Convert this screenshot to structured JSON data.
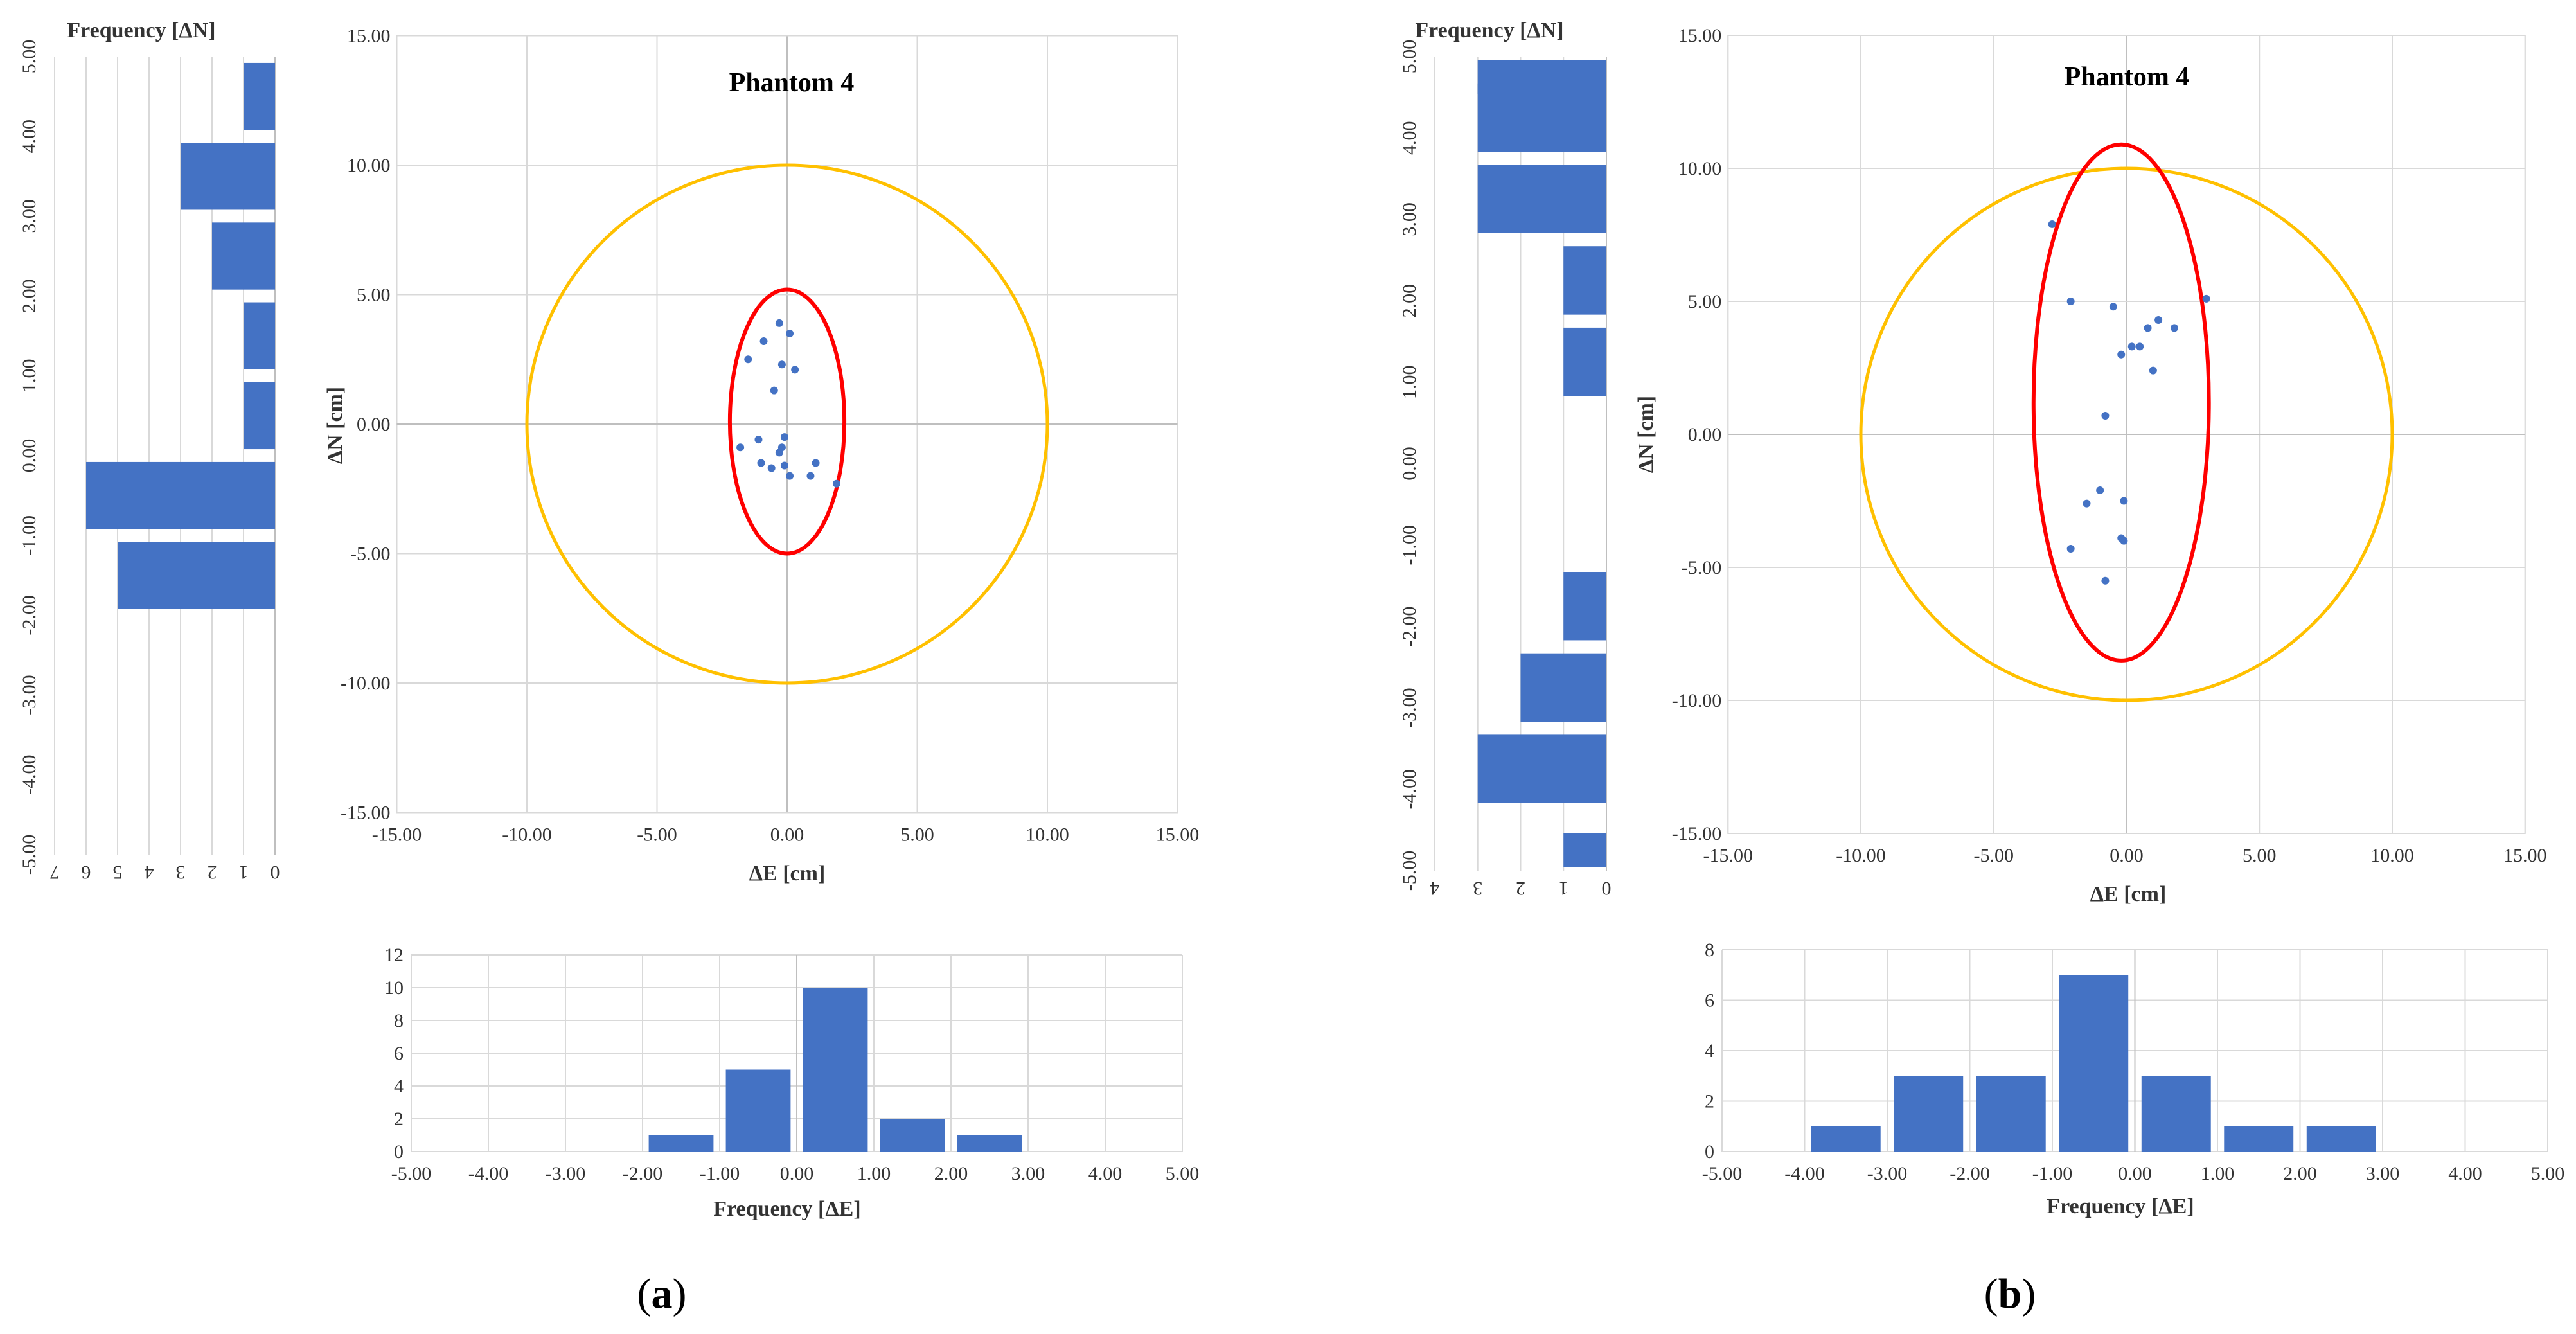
{
  "colors": {
    "bar": "#4472c4",
    "point": "#4472c4",
    "tolerance_circle": "#ffc000",
    "error_ellipse": "#ff0000",
    "grid": "#d9d9d9",
    "text": "#333333"
  },
  "panels": [
    {
      "label_open": "(",
      "label_letter": "a",
      "label_close": ")",
      "chart_data": [
        {
          "type": "scatter",
          "title": "Phantom 4",
          "xlabel": "ΔE [cm]",
          "ylabel": "ΔN [cm]",
          "xlim": [
            -15,
            15
          ],
          "ylim": [
            -15,
            15
          ],
          "xticks": [
            "-15.00",
            "-10.00",
            "-5.00",
            "0.00",
            "5.00",
            "10.00",
            "15.00"
          ],
          "yticks": [
            "-15.00",
            "-10.00",
            "-5.00",
            "0.00",
            "5.00",
            "10.00",
            "15.00"
          ],
          "grid": true,
          "points": [
            [
              -0.3,
              3.9
            ],
            [
              0.1,
              3.5
            ],
            [
              -0.9,
              3.2
            ],
            [
              -1.5,
              2.5
            ],
            [
              -0.2,
              2.3
            ],
            [
              0.3,
              2.1
            ],
            [
              -0.5,
              1.3
            ],
            [
              -1.1,
              -0.6
            ],
            [
              -0.1,
              -0.5
            ],
            [
              -1.8,
              -0.9
            ],
            [
              -0.2,
              -0.9
            ],
            [
              -0.3,
              -1.1
            ],
            [
              -1.0,
              -1.5
            ],
            [
              -0.1,
              -1.6
            ],
            [
              1.1,
              -1.5
            ],
            [
              -0.6,
              -1.7
            ],
            [
              0.1,
              -2.0
            ],
            [
              0.9,
              -2.0
            ],
            [
              1.9,
              -2.3
            ]
          ],
          "tolerance_circle": {
            "center": [
              0,
              0
            ],
            "radius": 10
          },
          "error_ellipse": {
            "center": [
              0,
              0.1
            ],
            "semi_axis_e": 2.2,
            "semi_axis_n": 5.1
          }
        },
        {
          "type": "bar",
          "orientation": "vertical",
          "xlabel": "Frequency [ΔE]",
          "xlim": [
            -5,
            5
          ],
          "ylim": [
            0,
            12
          ],
          "xticks": [
            "-5.00",
            "-4.00",
            "-3.00",
            "-2.00",
            "-1.00",
            "0.00",
            "1.00",
            "2.00",
            "3.00",
            "4.00",
            "5.00"
          ],
          "yticks": [
            "0",
            "2",
            "4",
            "6",
            "8",
            "10",
            "12"
          ],
          "bin_centers": [
            -4.5,
            -3.5,
            -2.5,
            -1.5,
            -0.5,
            0.5,
            1.5,
            2.5,
            3.5,
            4.5
          ],
          "values": [
            0,
            0,
            0,
            1,
            5,
            10,
            2,
            1,
            0,
            0
          ]
        },
        {
          "type": "bar",
          "orientation": "horizontal",
          "title": "Frequency [ΔN]",
          "ylim": [
            -5,
            5
          ],
          "xlim": [
            0,
            7
          ],
          "yticks": [
            "-5.00",
            "-4.00",
            "-3.00",
            "-2.00",
            "-1.00",
            "0.00",
            "1.00",
            "2.00",
            "3.00",
            "4.00",
            "5.00"
          ],
          "xticks": [
            "0",
            "1",
            "2",
            "3",
            "4",
            "5",
            "6",
            "7"
          ],
          "bin_centers": [
            -4.5,
            -3.5,
            -2.5,
            -1.5,
            -0.5,
            0.5,
            1.5,
            2.5,
            3.5,
            4.5
          ],
          "values": [
            0,
            0,
            0,
            5,
            6,
            1,
            1,
            2,
            3,
            1
          ]
        }
      ]
    },
    {
      "label_open": "(",
      "label_letter": "b",
      "label_close": ")",
      "chart_data": [
        {
          "type": "scatter",
          "title": "Phantom 4",
          "xlabel": "ΔE [cm]",
          "ylabel": "ΔN [cm]",
          "xlim": [
            -15,
            15
          ],
          "ylim": [
            -15,
            15
          ],
          "xticks": [
            "-15.00",
            "-10.00",
            "-5.00",
            "0.00",
            "5.00",
            "10.00",
            "15.00"
          ],
          "yticks": [
            "-15.00",
            "-10.00",
            "-5.00",
            "0.00",
            "5.00",
            "10.00",
            "15.00"
          ],
          "grid": true,
          "points": [
            [
              -2.8,
              7.9
            ],
            [
              -2.1,
              5.0
            ],
            [
              -0.5,
              4.8
            ],
            [
              3.0,
              5.1
            ],
            [
              1.2,
              4.3
            ],
            [
              1.8,
              4.0
            ],
            [
              0.8,
              4.0
            ],
            [
              0.2,
              3.3
            ],
            [
              0.5,
              3.3
            ],
            [
              -0.2,
              3.0
            ],
            [
              1.0,
              2.4
            ],
            [
              -0.8,
              0.7
            ],
            [
              -1.0,
              -2.1
            ],
            [
              -1.5,
              -2.6
            ],
            [
              -0.1,
              -2.5
            ],
            [
              -0.2,
              -3.9
            ],
            [
              -0.1,
              -4.0
            ],
            [
              -2.1,
              -4.3
            ],
            [
              -0.8,
              -5.5
            ]
          ],
          "tolerance_circle": {
            "center": [
              0,
              0
            ],
            "radius": 10
          },
          "error_ellipse": {
            "center": [
              -0.2,
              1.2
            ],
            "semi_axis_e": 3.3,
            "semi_axis_n": 9.7
          }
        },
        {
          "type": "bar",
          "orientation": "vertical",
          "xlabel": "Frequency [ΔE]",
          "xlim": [
            -5,
            5
          ],
          "ylim": [
            0,
            8
          ],
          "xticks": [
            "-5.00",
            "-4.00",
            "-3.00",
            "-2.00",
            "-1.00",
            "0.00",
            "1.00",
            "2.00",
            "3.00",
            "4.00",
            "5.00"
          ],
          "yticks": [
            "0",
            "2",
            "4",
            "6",
            "8"
          ],
          "bin_centers": [
            -4.5,
            -3.5,
            -2.5,
            -1.5,
            -0.5,
            0.5,
            1.5,
            2.5,
            3.5,
            4.5
          ],
          "values": [
            0,
            1,
            3,
            3,
            7,
            3,
            1,
            1,
            0,
            0
          ]
        },
        {
          "type": "bar",
          "orientation": "horizontal",
          "title": "Frequency [ΔN]",
          "ylim": [
            -5,
            5
          ],
          "xlim": [
            0,
            4
          ],
          "yticks": [
            "-5.00",
            "-4.00",
            "-3.00",
            "-2.00",
            "-1.00",
            "0.00",
            "1.00",
            "2.00",
            "3.00",
            "4.00",
            "5.00"
          ],
          "xticks": [
            "0",
            "1",
            "2",
            "3",
            "4"
          ],
          "bin_centers": [
            -4.75,
            -3.75,
            -2.75,
            -1.75,
            -0.75,
            0.25,
            1.25,
            2.25,
            3.25,
            4.25,
            4.75
          ],
          "values": [
            1,
            3,
            2,
            1,
            0,
            0,
            1,
            1,
            3,
            3,
            3
          ]
        }
      ]
    }
  ]
}
